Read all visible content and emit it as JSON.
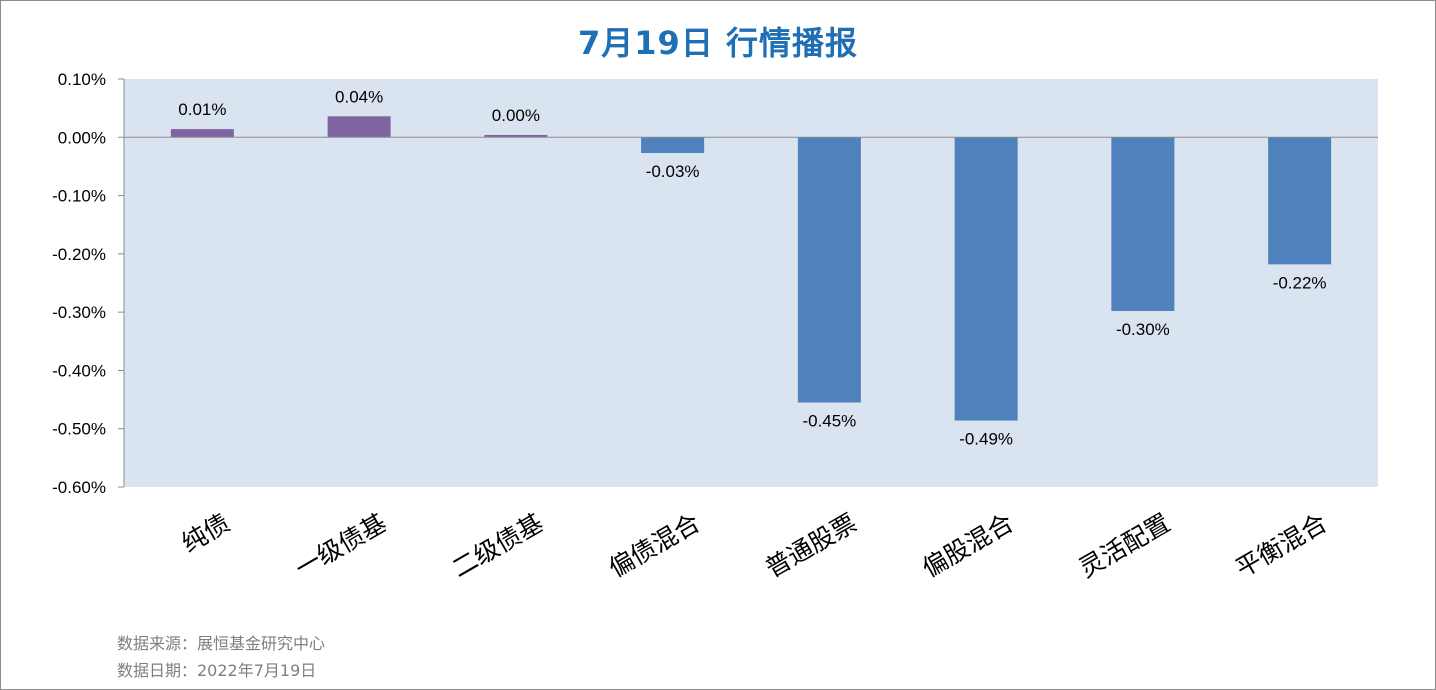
{
  "title": "7月19日  行情播报",
  "footer": {
    "source": "数据来源：展恒基金研究中心",
    "date": "数据日期：2022年7月19日"
  },
  "colors": {
    "plot_bg": "#dae3f0",
    "positive_bar": "#8064a2",
    "negative_bar": "#4f81bd",
    "title": "#1f6fb5"
  },
  "chart_data": {
    "type": "bar",
    "title": "7月19日  行情播报",
    "xlabel": "",
    "ylabel": "",
    "ylim": [
      -0.6,
      0.1
    ],
    "yticks": [
      "0.10%",
      "0.00%",
      "-0.10%",
      "-0.20%",
      "-0.30%",
      "-0.40%",
      "-0.50%",
      "-0.60%"
    ],
    "ytick_values": [
      0.1,
      0.0,
      -0.1,
      -0.2,
      -0.3,
      -0.4,
      -0.5,
      -0.6
    ],
    "categories": [
      "纯债",
      "一级债基",
      "二级债基",
      "偏债混合",
      "普通股票",
      "偏股混合",
      "灵活配置",
      "平衡混合"
    ],
    "values": [
      0.014,
      0.036,
      0.004,
      -0.027,
      -0.455,
      -0.486,
      -0.298,
      -0.218
    ],
    "data_labels": [
      "0.01%",
      "0.04%",
      "0.00%",
      "-0.03%",
      "-0.45%",
      "-0.49%",
      "-0.30%",
      "-0.22%"
    ],
    "grid": false,
    "legend": "none"
  }
}
